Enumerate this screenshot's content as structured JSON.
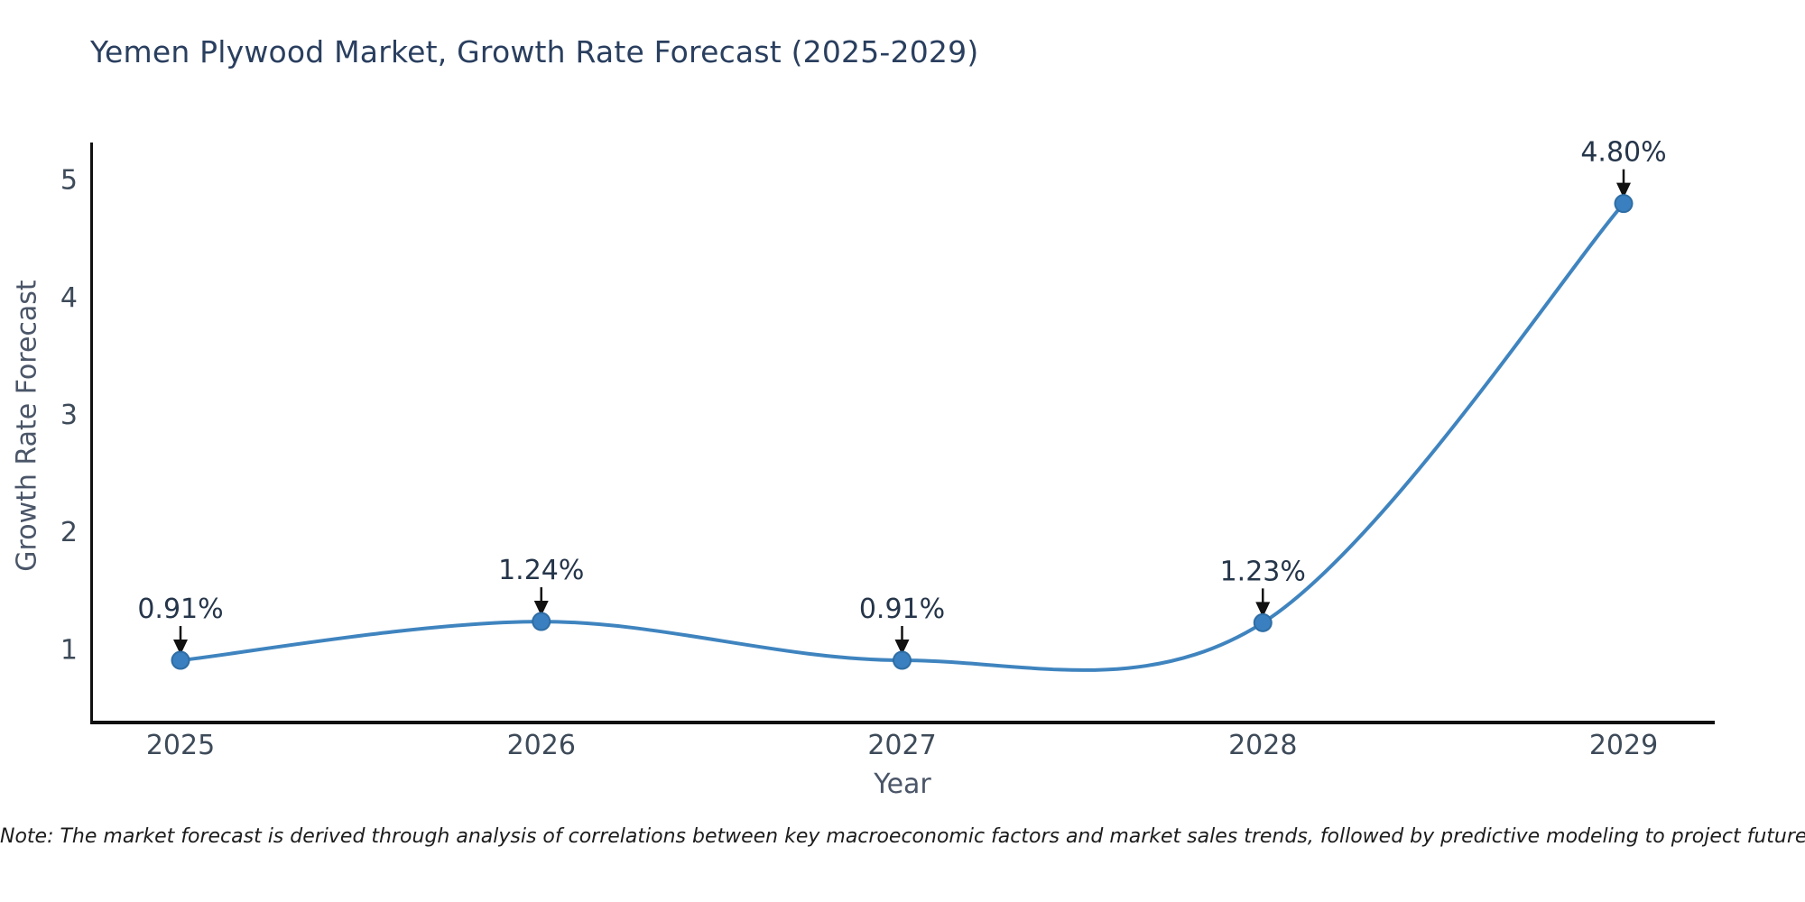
{
  "title": {
    "text": "Yemen Plywood Market, Growth Rate Forecast (2025-2029)",
    "color": "#2a3f5f"
  },
  "note": {
    "text": "Note: The market forecast is derived through analysis of correlations between key macroeconomic factors and market sales trends, followed by predictive modeling to project future sales.",
    "color": "#1c1c1c"
  },
  "chart_data": {
    "type": "line",
    "title": "Yemen Plywood Market, Growth Rate Forecast (2025-2029)",
    "xlabel": "Year",
    "ylabel": "Growth Rate Forecast",
    "categories": [
      "2025",
      "2026",
      "2027",
      "2028",
      "2029"
    ],
    "series": [
      {
        "name": "Growth Rate Forecast",
        "values": [
          0.91,
          1.24,
          0.91,
          1.23,
          4.8
        ]
      }
    ],
    "point_labels": [
      "0.91%",
      "1.24%",
      "0.91%",
      "1.23%",
      "4.80%"
    ],
    "yticks": [
      "1",
      "2",
      "3",
      "4",
      "5"
    ],
    "ylim": [
      0.38,
      5.32
    ],
    "line_shape": "spline",
    "grid": false,
    "legend": "none",
    "markers": true,
    "annotation_style": "arrow-down-to-point",
    "colors": {
      "line": "#3f84bf",
      "marker_fill": "#3a7fbf",
      "marker_edge": "#2e6da4",
      "axis_line": "#111111",
      "tick_text": "#3d4a59",
      "axis_title_text": "#4a5568",
      "annotation_text": "#25354a",
      "arrow": "#111111"
    }
  }
}
